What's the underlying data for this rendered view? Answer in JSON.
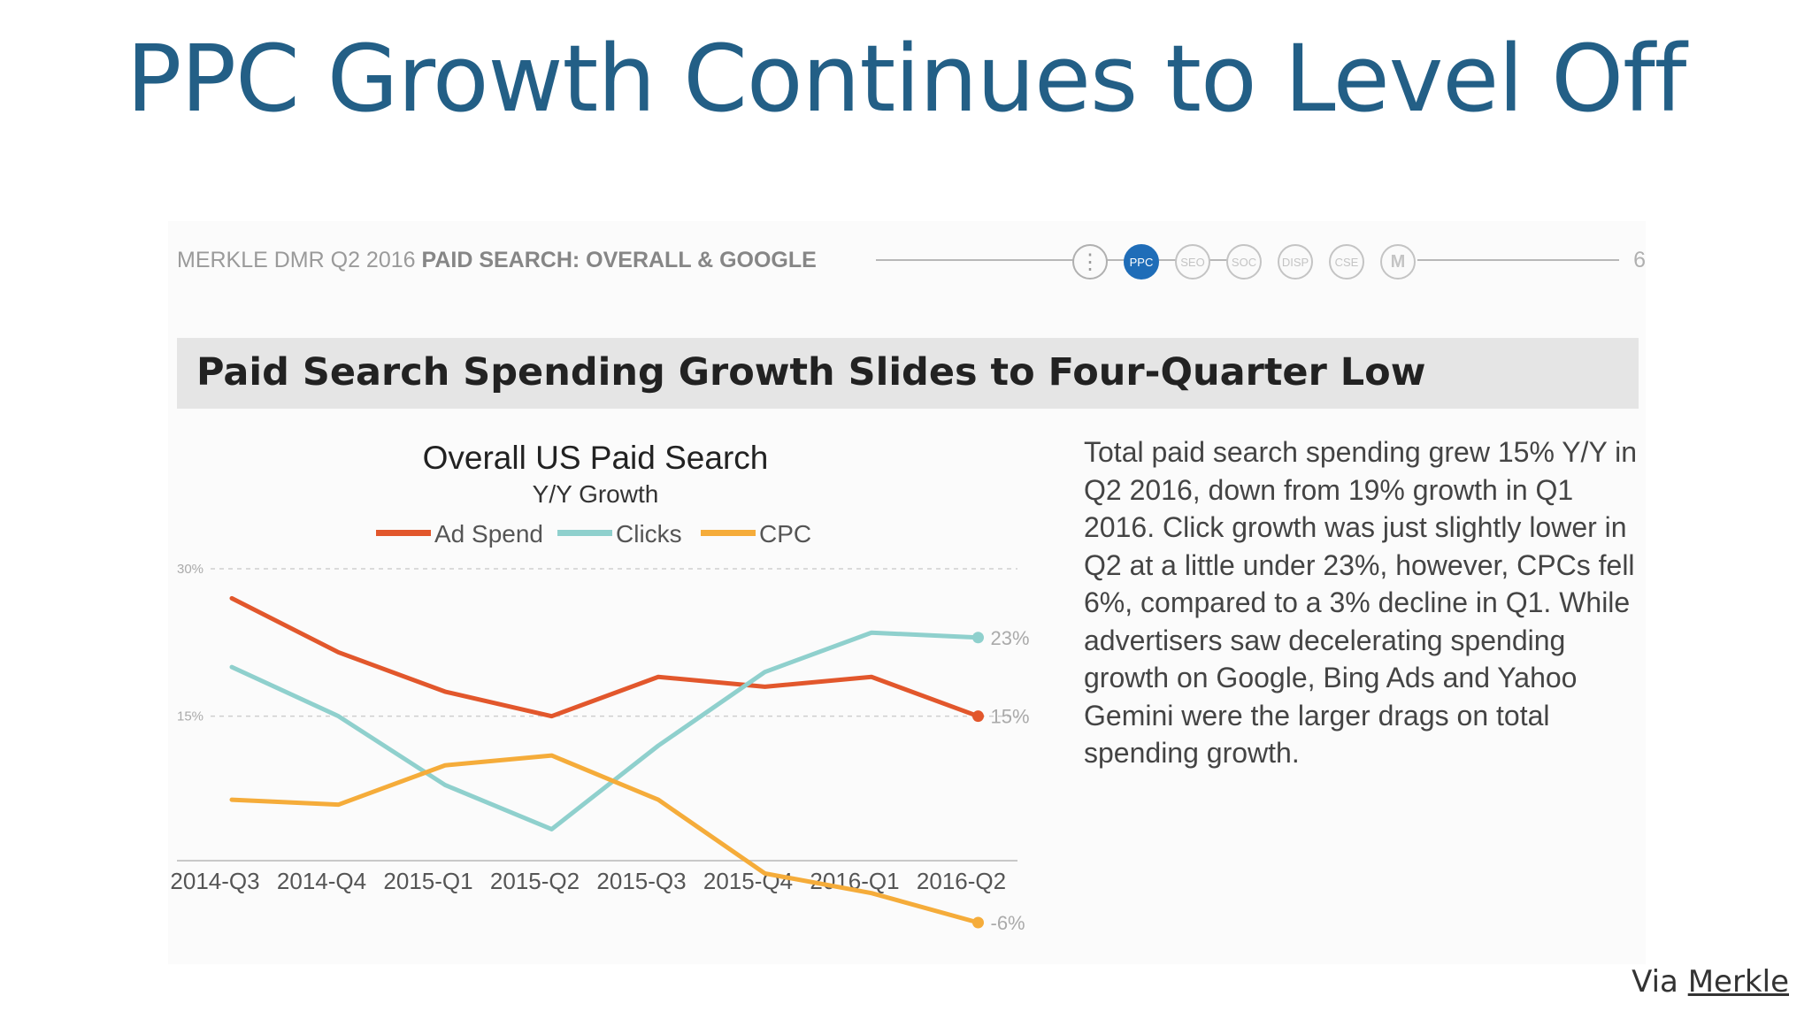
{
  "slide": {
    "title": "PPC Growth Continues to Level Off",
    "via_prefix": "Via ",
    "via_link": "Merkle"
  },
  "report": {
    "header_source": "MERKLE DMR Q2 2016",
    "header_section": "PAID SEARCH: OVERALL & GOOGLE",
    "nav_items": [
      "",
      "PPC",
      "SEO",
      "SOC",
      "DISP",
      "CSE",
      "M"
    ],
    "nav_active": "PPC",
    "page_number": "6",
    "banner": "Paid Search Spending Growth Slides to Four-Quarter Low",
    "body_text": "Total paid search spending grew 15% Y/Y in Q2 2016, down from 19% growth in Q1 2016. Click growth was just slightly lower in Q2 at a little under 23%, however, CPCs fell 6%, compared to a 3% decline in Q1. While advertisers saw decelerating spending growth on Google, Bing Ads and Yahoo Gemini were the larger drags on total spending growth."
  },
  "chart_data": {
    "type": "line",
    "title": "Overall US Paid Search",
    "subtitle": "Y/Y Growth",
    "categories": [
      "2014-Q3",
      "2014-Q4",
      "2015-Q1",
      "2015-Q2",
      "2015-Q3",
      "2015-Q4",
      "2016-Q1",
      "2016-Q2"
    ],
    "ylim": [
      -6,
      30
    ],
    "yticks": [
      {
        "value": 30,
        "label": "30%"
      },
      {
        "value": 15,
        "label": "15%"
      }
    ],
    "grid": true,
    "legend_position": "top",
    "series": [
      {
        "name": "Ad Spend",
        "color": "#e2572c",
        "values": [
          27,
          21.5,
          17.5,
          15,
          19,
          18,
          19,
          15
        ],
        "end_label": "15%"
      },
      {
        "name": "Clicks",
        "color": "#8fd0cd",
        "values": [
          20,
          15,
          8,
          3.5,
          12,
          19.5,
          23.5,
          23
        ],
        "end_label": "23%"
      },
      {
        "name": "CPC",
        "color": "#f5ac3a",
        "values": [
          6.5,
          6,
          10,
          11,
          6.5,
          -1,
          -3,
          -6
        ],
        "end_label": "-6%"
      }
    ]
  }
}
